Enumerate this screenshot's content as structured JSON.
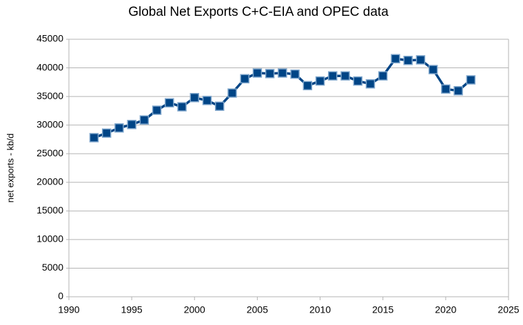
{
  "chart_data": {
    "type": "line",
    "title": "Global Net Exports C+C-EIA and OPEC data",
    "y_label": "net exports - kb/d",
    "x": [
      1992,
      1993,
      1994,
      1995,
      1996,
      1997,
      1998,
      1999,
      2000,
      2001,
      2002,
      2003,
      2004,
      2005,
      2006,
      2007,
      2008,
      2009,
      2010,
      2011,
      2012,
      2013,
      2014,
      2015,
      2016,
      2017,
      2018,
      2019,
      2020,
      2021,
      2022
    ],
    "series": [
      {
        "name": "net exports",
        "color": "#004586",
        "values": [
          27800,
          28600,
          29500,
          30100,
          30900,
          32600,
          33900,
          33200,
          34800,
          34300,
          33300,
          35600,
          38100,
          39100,
          39000,
          39100,
          38900,
          36900,
          37700,
          38600,
          38600,
          37700,
          37200,
          38600,
          41600,
          41300,
          41400,
          39700,
          36300,
          36000,
          37900
        ]
      }
    ],
    "xlim": [
      1990,
      2025
    ],
    "xticks": [
      1990,
      1995,
      2000,
      2005,
      2010,
      2015,
      2020,
      2025
    ],
    "ylim": [
      0,
      45000
    ],
    "yticks": [
      0,
      5000,
      10000,
      15000,
      20000,
      25000,
      30000,
      35000,
      40000,
      45000
    ],
    "grid": true
  }
}
